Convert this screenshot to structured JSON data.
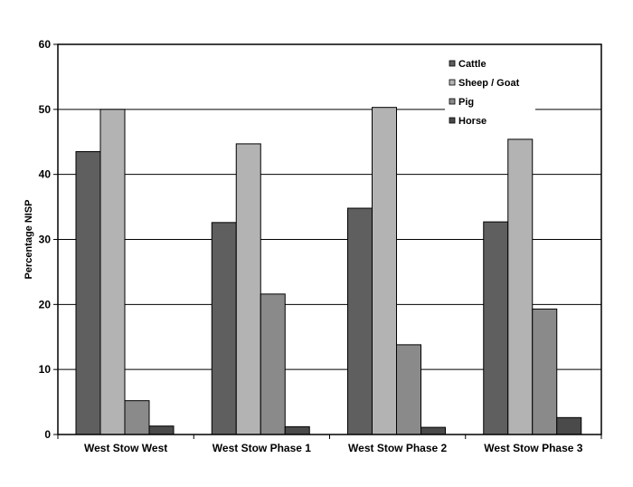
{
  "chart_data": {
    "type": "bar",
    "title": "",
    "xlabel": "",
    "ylabel": "Percentage NISP",
    "ylim": [
      0,
      60
    ],
    "yticks": [
      0,
      10,
      20,
      30,
      40,
      50,
      60
    ],
    "grid": true,
    "legend_position": "top-right",
    "categories": [
      "West Stow West",
      "West Stow Phase 1",
      "West Stow Phase 2",
      "West Stow Phase 3"
    ],
    "series": [
      {
        "name": "Cattle",
        "color": "#5f5f5f",
        "values": [
          43.5,
          32.6,
          34.8,
          32.7
        ]
      },
      {
        "name": "Sheep / Goat",
        "color": "#b3b3b3",
        "values": [
          50.0,
          44.7,
          50.3,
          45.4
        ]
      },
      {
        "name": "Pig",
        "color": "#8a8a8a",
        "values": [
          5.2,
          21.6,
          13.8,
          19.3
        ]
      },
      {
        "name": "Horse",
        "color": "#4a4a4a",
        "values": [
          1.3,
          1.2,
          1.1,
          2.6
        ]
      }
    ]
  }
}
